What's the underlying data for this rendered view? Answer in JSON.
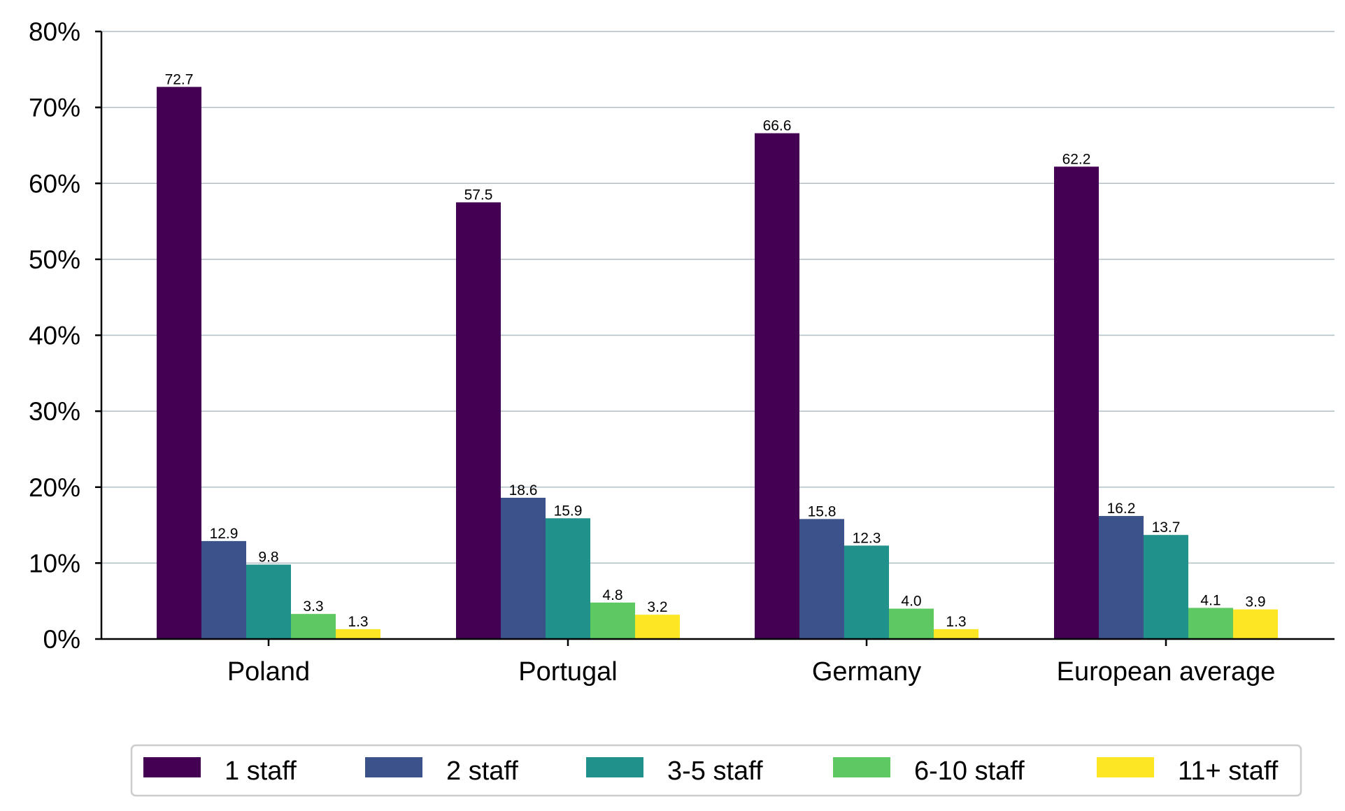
{
  "chart_data": {
    "type": "bar",
    "categories": [
      "Poland",
      "Portugal",
      "Germany",
      "European average"
    ],
    "series": [
      {
        "name": "1 staff",
        "color": "#440154",
        "values": [
          72.7,
          57.5,
          66.6,
          62.2
        ],
        "labels": [
          "72.7",
          "57.5",
          "66.6",
          "62.2"
        ]
      },
      {
        "name": "2 staff",
        "color": "#3b528b",
        "values": [
          12.9,
          18.6,
          15.8,
          16.2
        ],
        "labels": [
          "12.9",
          "18.6",
          "15.8",
          "16.2"
        ]
      },
      {
        "name": "3-5 staff",
        "color": "#21918c",
        "values": [
          9.8,
          15.9,
          12.3,
          13.7
        ],
        "labels": [
          "9.8",
          "15.9",
          "12.3",
          "13.7"
        ]
      },
      {
        "name": "6-10 staff",
        "color": "#5ec962",
        "values": [
          3.3,
          4.8,
          4.0,
          4.1
        ],
        "labels": [
          "3.3",
          "4.8",
          "4.0",
          "4.1"
        ]
      },
      {
        "name": "11+ staff",
        "color": "#fde725",
        "values": [
          1.3,
          3.2,
          1.3,
          3.9
        ],
        "labels": [
          "1.3",
          "3.2",
          "1.3",
          "3.9"
        ]
      }
    ],
    "yticks": [
      0,
      10,
      20,
      30,
      40,
      50,
      60,
      70,
      80
    ],
    "ytick_labels": [
      "0%",
      "10%",
      "20%",
      "30%",
      "40%",
      "50%",
      "60%",
      "70%",
      "80%"
    ],
    "ylim": [
      0,
      80
    ],
    "grid": "horizontal",
    "legend_position": "bottom"
  }
}
